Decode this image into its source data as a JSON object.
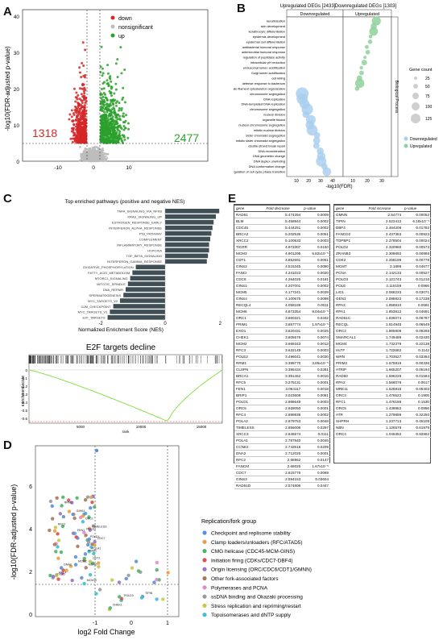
{
  "panels": {
    "A": "A",
    "B": "B",
    "C": "C",
    "D": "D",
    "E": "E"
  },
  "colors": {
    "down": "#d62728",
    "nonsig": "#bdbdbd",
    "up": "#2ca02c",
    "bar": "#3f4f55",
    "enrich": "#7fe03a",
    "bubble_down": "#a9cfef",
    "bubble_up": "#8fd19e"
  },
  "volcano": {
    "ylabel": "-log10(FDR-adjusted p-value)",
    "legend": [
      {
        "name": "down",
        "color": "#d62728"
      },
      {
        "name": "nonsignificant",
        "color": "#bdbdbd"
      },
      {
        "name": "up",
        "color": "#2ca02c"
      }
    ],
    "count_down": "1318",
    "count_up": "2477",
    "xticks": [
      "-10",
      "0",
      "10"
    ],
    "yticks": [
      "0",
      "10",
      "20",
      "30",
      "40"
    ]
  },
  "bubble": {
    "title_left": "Upregulated DEGs [2433]",
    "title_right": "Downregulated DEGs [1303]",
    "facet_left": "Downregulated",
    "facet_right": "Upregulated",
    "strip": "Biological Process",
    "xlabel": "-log10(FDR)",
    "xticks_left": [
      "10",
      "20",
      "30",
      "40"
    ],
    "xticks_right": [
      "10",
      "20",
      "30"
    ],
    "legend_title": "Gene count",
    "legend_sizes": [
      "25",
      "50",
      "75",
      "100",
      "125"
    ],
    "legend_groups": [
      "Downregulated",
      "Upregulated"
    ],
    "terms": [
      "keratinization",
      "skin development",
      "keratinocyte differentiation",
      "epidermis development",
      "epidermal cell differentiation",
      "antibacterial humoral response",
      "antimicrobial humoral response",
      "regulation of peptidase activity",
      "intracellular pH reduction",
      "endosomal lumen acidification",
      "Golgi lumen acidification",
      "cell killing",
      "defense response to bacterium",
      "intermediate filament cytoskeleton organization",
      "chromosome segregation",
      "DNA replication",
      "DNA-templated DNA replication",
      "chromosome segregation",
      "nuclear division",
      "organelle fission",
      "nuclear chromosome segregation",
      "mitotic nuclear division",
      "sister chromatid segregation",
      "mitotic sister chromatid segregation",
      "double-strand break repair",
      "DNA recombination",
      "DNA geometric change",
      "DNA duplex unwinding",
      "DNA conformation change",
      "regulation of cell cycle phase transition"
    ]
  },
  "pathways": {
    "title": "Top enriched pathways (positive and negative NES)",
    "xlabel": "Normalized Enrichment Score (NES)",
    "xticks": [
      "-2",
      "0",
      "2"
    ],
    "chart_data": {
      "type": "bar",
      "categories": [
        "TNFA_SIGNALING_VIA_NFKB",
        "KRAS_SIGNALING_UP",
        "ESTROGEN_RESPONSE_EARLY",
        "INTERFERON_ALPHA_RESPONSE",
        "P53_PATHWAY",
        "COMPLEMENT",
        "INFLAMMATORY_RESPONSE",
        "HYPOXIA",
        "TGF_BETA_SIGNALING",
        "INTERFERON_GAMMA_RESPONSE",
        "OXIDATIVE_PHOSPHORYLATION",
        "FATTY_ACID_METABOLISM",
        "MTORC1_SIGNALING",
        "MITOTIC_SPINDLE",
        "DNA_REPAIR",
        "SPERMATOGENESIS",
        "MYC_TARGETS_V2",
        "G2M_CHECKPOINT",
        "MYC_TARGETS_V1",
        "E2F_TARGETS"
      ],
      "values": [
        2.4,
        2.25,
        2.15,
        2.1,
        2.05,
        2.0,
        1.95,
        1.95,
        1.9,
        1.85,
        -1.3,
        -1.45,
        -1.55,
        -1.65,
        -1.75,
        -1.85,
        -2.0,
        -2.3,
        -2.45,
        -2.55
      ],
      "xlim": [
        -3,
        3
      ]
    }
  },
  "gsea": {
    "title": "E2F targets decline",
    "ylabel": "enrichment score",
    "xlabel": "rank",
    "xticks": [
      "5000",
      "10000",
      "15000"
    ],
    "yticks": [
      "0",
      "-0.1",
      "-0.2",
      "-0.3",
      "-0.4",
      "-0.5",
      "-0.6"
    ]
  },
  "scatter": {
    "ylabel": "-log10(FDR-adjusted p-value)",
    "xlabel": "log2 Fold Change",
    "xticks": [
      "-1",
      "0",
      "1"
    ],
    "yticks": [
      "0",
      "2",
      "4",
      "6"
    ],
    "legend_title": "Replication/fork group",
    "legend": [
      {
        "name": "Checkpoint and replisome stability",
        "color": "#5b8fd9"
      },
      {
        "name": "Clamp loaders/unloaders (RFC/ATAD5)",
        "color": "#e5a04a"
      },
      {
        "name": "CMG helicase (CDC45-MCM-GINS)",
        "color": "#4db36a"
      },
      {
        "name": "Initiation firing (CDKs/CDC7-DBF4)",
        "color": "#d9534f"
      },
      {
        "name": "Origin licensing (ORC/CDC6/CDT1/GMNN)",
        "color": "#9b72c9"
      },
      {
        "name": "Other fork-associated factors",
        "color": "#a8785a"
      },
      {
        "name": "Polymerases and PCNA",
        "color": "#e58ac8"
      },
      {
        "name": "ssDNA binding and Okazaki processing",
        "color": "#9a9a9a"
      },
      {
        "name": "Stress replication and repriming/restart",
        "color": "#c8c84a"
      },
      {
        "name": "Topoisomerases and dNTP supply",
        "color": "#3fbfcf"
      }
    ],
    "labels": [
      "TIPIN",
      "PRIM1",
      "POLE2",
      "MCM6",
      "CDC45",
      "RFC4",
      "ORC1",
      "POLA1",
      "GINS4",
      "MCM10",
      "CDC7",
      "FEN1",
      "CHEK1",
      "RFC2",
      "POLD3",
      "RRM1",
      "CDT1",
      "TIMELESS",
      "DNA2",
      "POLD1",
      "MCM2"
    ]
  },
  "table": {
    "headers": [
      "gene",
      "Fold decrease",
      "p-value"
    ],
    "headers_right": [
      "gene",
      "Fold increase",
      "p-value"
    ],
    "left": [
      [
        "RAD51",
        "5.474394",
        "0.0009"
      ],
      [
        "BLM",
        "5.458944",
        "0.0002"
      ],
      [
        "CDC45",
        "5.444251",
        "0.0002"
      ],
      [
        "BRCA2",
        "5.202536",
        "0.0051"
      ],
      [
        "XRCC2",
        "5.100533",
        "0.0003"
      ],
      [
        "TICRR",
        "4.973307",
        "0.0150"
      ],
      [
        "MCM3",
        "4.901295",
        "5.82x10⁻⁵"
      ],
      [
        "CDT1",
        "4.852691",
        "0.0061"
      ],
      [
        "GINS2",
        "4.515345",
        "0.0080"
      ],
      [
        "FANCI",
        "4.341023",
        "0.0020"
      ],
      [
        "CDC6",
        "4.264025",
        "0.0181"
      ],
      [
        "GINS1",
        "4.207001",
        "0.0002"
      ],
      [
        "MCM5",
        "4.177241",
        "0.0039"
      ],
      [
        "GINS4",
        "4.100675",
        "0.0098"
      ],
      [
        "RECQL4",
        "4.058189",
        "0.0011"
      ],
      [
        "MCM6",
        "4.873354",
        "9.04x10⁻⁵"
      ],
      [
        "ORC1",
        "3.860321",
        "0.0342"
      ],
      [
        "PRIM1",
        "3.857774",
        "1.97x10⁻⁵"
      ],
      [
        "EXO1",
        "3.820431",
        "0.0025"
      ],
      [
        "CHEK1",
        "3.805576",
        "0.0074"
      ],
      [
        "MCM2",
        "3.669343",
        "0.0013"
      ],
      [
        "RFC3",
        "3.632149",
        "0.0003"
      ],
      [
        "POLE2",
        "3.496041",
        "0.0030"
      ],
      [
        "RRM1",
        "3.398770",
        "3.85x10⁻⁵"
      ],
      [
        "CLSPN",
        "3.395434",
        "0.0281"
      ],
      [
        "BRCA1",
        "3.391462",
        "0.0016"
      ],
      [
        "RFC5",
        "3.275131",
        "0.0001"
      ],
      [
        "FEN1",
        "3.064117",
        "0.0018"
      ],
      [
        "BRIP1",
        "3.023608",
        "0.0081"
      ],
      [
        "POLD1",
        "2.986649",
        "0.0003"
      ],
      [
        "ORC5",
        "2.928050",
        "0.0001"
      ],
      [
        "RFC4",
        "2.899938",
        "0.0002"
      ],
      [
        "POLA2",
        "2.879753",
        "0.0048"
      ],
      [
        "TIMELESS",
        "2.856006",
        "0.0297"
      ],
      [
        "XRCC3",
        "2.846574",
        "0.0111"
      ],
      [
        "POLA1",
        "2.787840",
        "0.0046"
      ],
      [
        "CCNE2",
        "2.743518",
        "0.0209"
      ],
      [
        "DNA2",
        "2.712025",
        "0.0001"
      ],
      [
        "RFC2",
        "2.68962",
        "0.0147"
      ],
      [
        "FANCM",
        "2.68025",
        "1.67x10⁻⁵"
      ],
      [
        "CDC7",
        "2.615776",
        "0.0069"
      ],
      [
        "GINS3",
        "2.594153",
        "0.03604"
      ],
      [
        "RAD51D",
        "2.574806",
        "0.0447"
      ]
    ],
    "right": [
      [
        "GMNN",
        "2.54774",
        "0.00052"
      ],
      [
        "TIPIN",
        "2.522412",
        "6.18x10⁻⁵"
      ],
      [
        "DBF4",
        "2.464206",
        "0.01782"
      ],
      [
        "FANCD2",
        "2.437363",
        "0.00923"
      ],
      [
        "TOPBP1",
        "2.378504",
        "0.00024"
      ],
      [
        "POLD2",
        "2.320980",
        "0.00573"
      ],
      [
        "ZRANB3",
        "2.308692",
        "0.00868"
      ],
      [
        "CDK2",
        "2.258199",
        "0.00778"
      ],
      [
        "MCM7",
        "2.1898",
        "0.04677"
      ],
      [
        "PCNA",
        "2.142133",
        "0.00527"
      ],
      [
        "POLD3",
        "2.121743",
        "0.01216"
      ],
      [
        "POLE",
        "2.115159",
        "0.0866"
      ],
      [
        "LIG1",
        "2.068233",
        "0.03071"
      ],
      [
        "GEN1",
        "2.098822",
        "0.17238"
      ],
      [
        "RPA3",
        "1.958810",
        "0.0681"
      ],
      [
        "RPA1",
        "1.853812",
        "0.04691"
      ],
      [
        "RAD51C",
        "1.836074",
        "0.06787"
      ],
      [
        "RECQL",
        "1.814945",
        "0.06549"
      ],
      [
        "ORC2",
        "1.805909",
        "0.09268"
      ],
      [
        "SMARCAL1",
        "1.749489",
        "0.02430"
      ],
      [
        "MCM4",
        "1.732379",
        "0.22138"
      ],
      [
        "HLTF",
        "1.722662",
        "0.1142"
      ],
      [
        "WRN",
        "1.703527",
        "0.03354"
      ],
      [
        "PRIM2",
        "1.675819",
        "0.00336"
      ],
      [
        "ATRIP",
        "1.665207",
        "0.05194"
      ],
      [
        "RAD50",
        "1.596226",
        "0.01584"
      ],
      [
        "RPA2",
        "1.568076",
        "0.0017"
      ],
      [
        "MRE11",
        "1.526815",
        "0.05403"
      ],
      [
        "ORC3",
        "1.476522",
        "0.1905"
      ],
      [
        "RFC1",
        "1.476186",
        "0.1530"
      ],
      [
        "ORC5",
        "1.438952",
        "0.0856"
      ],
      [
        "ATR",
        "1.279689",
        "0.32250"
      ],
      [
        "SHPRH",
        "1.237713",
        "0.45109"
      ],
      [
        "NBN",
        "1.126576",
        "0.61979"
      ],
      [
        "ORC4",
        "1.046352",
        "0.92862"
      ]
    ]
  }
}
